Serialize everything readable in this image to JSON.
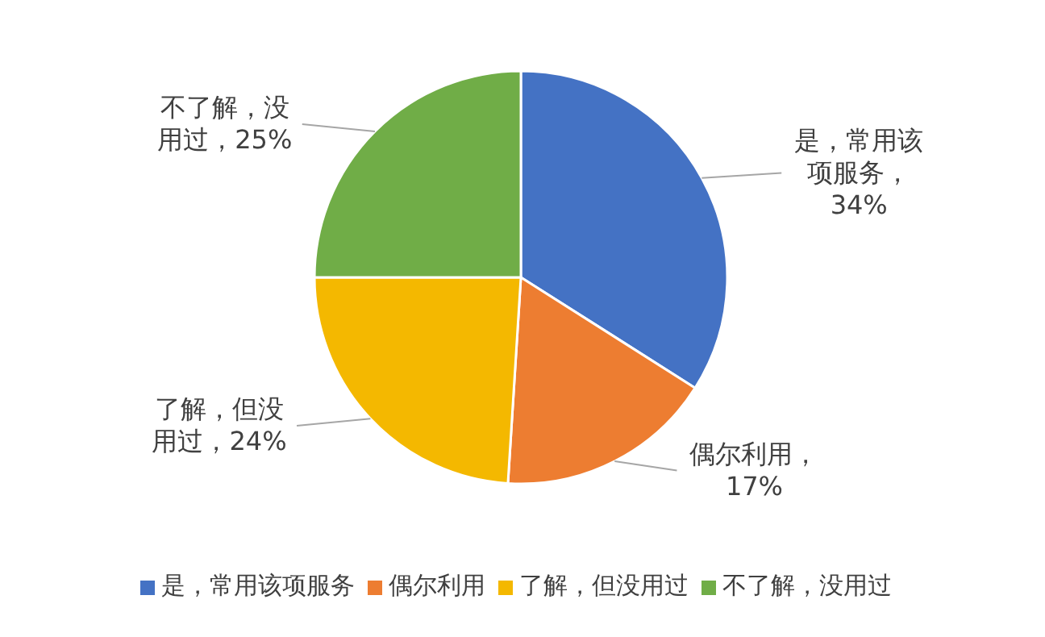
{
  "chart_data": {
    "type": "pie",
    "categories": [
      "是，常用该项服务",
      "偶尔利用",
      "了解，但没用过",
      "不了解，没用过"
    ],
    "values": [
      34,
      17,
      24,
      25
    ],
    "colors": [
      "#4472c4",
      "#ed7d31",
      "#f4b800",
      "#70ad47"
    ],
    "value_labels": [
      "是，常用该项服务，34%",
      "偶尔利用，17%",
      "了解，但没用过，24%",
      "不了解，没用过，25%"
    ],
    "legend": "bottom"
  }
}
